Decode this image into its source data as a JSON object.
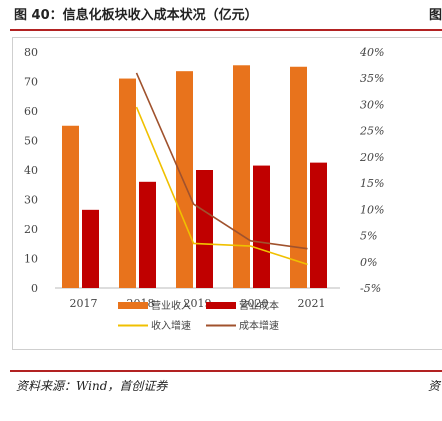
{
  "header": {
    "title": "图 40：信息化板块收入成本状况（亿元）",
    "right_label": "图"
  },
  "footer": {
    "source": "资料来源：Wind，首创证券",
    "right_label": "资"
  },
  "colors": {
    "accent_rule": "#b22222",
    "revenue_bar": "#e8731c",
    "cost_bar": "#c00000",
    "revenue_growth_line": "#f0c000",
    "cost_growth_line": "#a0522d"
  },
  "chart_data": {
    "type": "bar",
    "title": "信息化板块收入成本状况（亿元）",
    "categories": [
      "2017",
      "2018",
      "2019",
      "2020",
      "2021"
    ],
    "series": [
      {
        "name": "营业收入",
        "kind": "bar",
        "axis": "left",
        "values": [
          55,
          71,
          73.5,
          75.5,
          75
        ]
      },
      {
        "name": "营业成本",
        "kind": "bar",
        "axis": "left",
        "values": [
          26.5,
          36,
          40,
          41.5,
          42.5
        ]
      },
      {
        "name": "收入增速",
        "kind": "line",
        "axis": "right",
        "values": [
          null,
          29.5,
          3.5,
          3,
          -0.5
        ]
      },
      {
        "name": "成本增速",
        "kind": "line",
        "axis": "right",
        "values": [
          null,
          36,
          11,
          4,
          2.5
        ]
      }
    ],
    "y_left": {
      "min": 0,
      "max": 80,
      "ticks": [
        "0",
        "10",
        "20",
        "30",
        "40",
        "50",
        "60",
        "70",
        "80"
      ]
    },
    "y_right": {
      "min": -5,
      "max": 40,
      "ticks": [
        "-5%",
        "0%",
        "5%",
        "10%",
        "15%",
        "20%",
        "25%",
        "30%",
        "35%",
        "40%"
      ]
    },
    "legend": [
      {
        "label": "营业收入",
        "kind": "bar",
        "color": "#e8731c"
      },
      {
        "label": "营业成本",
        "kind": "bar",
        "color": "#c00000"
      },
      {
        "label": "收入增速",
        "kind": "line",
        "color": "#f0c000"
      },
      {
        "label": "成本增速",
        "kind": "line",
        "color": "#a0522d"
      }
    ],
    "legend_position": "bottom",
    "grid": false
  }
}
